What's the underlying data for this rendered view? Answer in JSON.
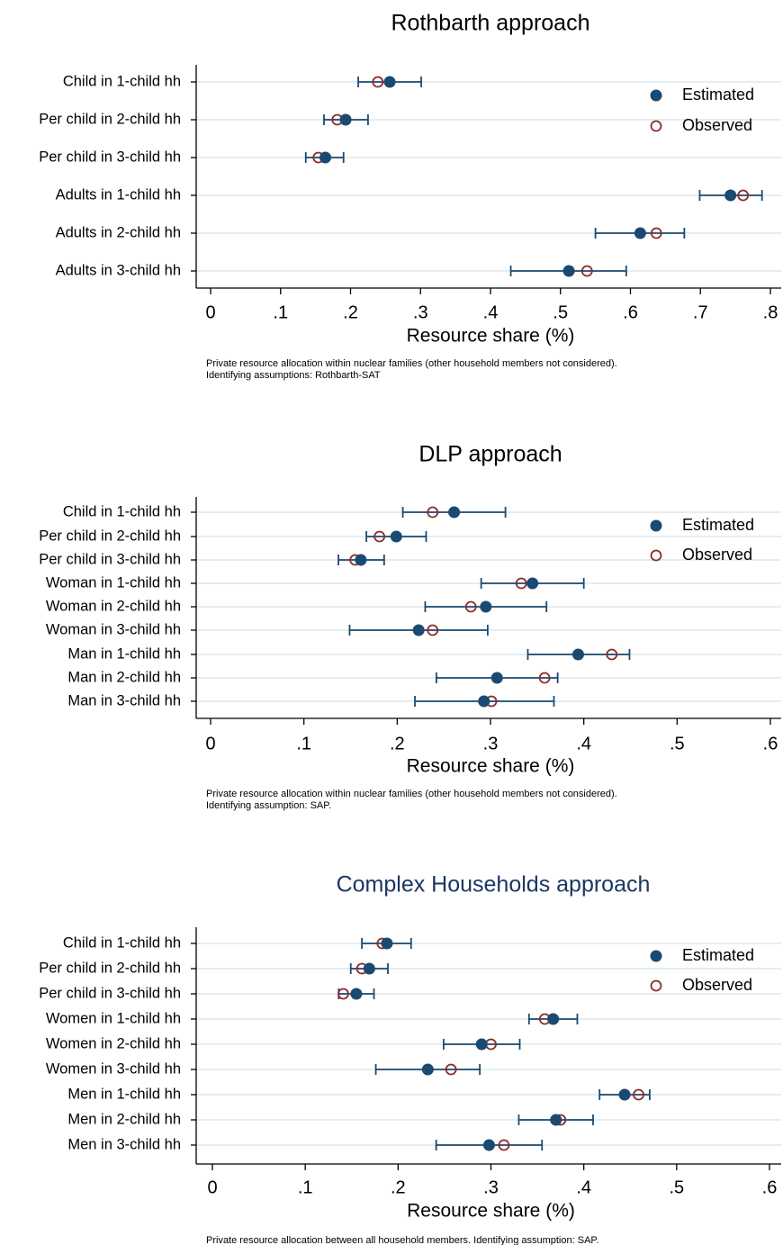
{
  "colors": {
    "estimated": "#1a4a72",
    "observed": "#8f2a28",
    "grid": "#e4eef1",
    "title_panel_3": "#1a3763",
    "axis": "#000000"
  },
  "chart_data": [
    {
      "type": "scatter",
      "title": "Rothbarth approach",
      "xlabel": "Resource share (%)",
      "xlim": [
        0,
        0.8
      ],
      "xticks": [
        0,
        0.1,
        0.2,
        0.3,
        0.4,
        0.5,
        0.6,
        0.7,
        0.8
      ],
      "xtick_labels": [
        "0",
        ".1",
        ".2",
        ".3",
        ".4",
        ".5",
        ".6",
        ".7",
        ".8"
      ],
      "categories": [
        "Child in 1-child hh",
        "Per child in 2-child hh",
        "Per child in 3-child hh",
        "Adults in 1-child hh",
        "Adults in 2-child hh",
        "Adults in 3-child hh"
      ],
      "series": [
        {
          "name": "Estimated",
          "values": [
            0.256,
            0.193,
            0.164,
            0.743,
            0.614,
            0.512
          ],
          "ci_low": [
            0.211,
            0.162,
            0.136,
            0.699,
            0.55,
            0.429
          ],
          "ci_high": [
            0.301,
            0.225,
            0.19,
            0.788,
            0.677,
            0.594
          ]
        },
        {
          "name": "Observed",
          "values": [
            0.239,
            0.181,
            0.154,
            0.761,
            0.637,
            0.538
          ]
        }
      ],
      "legend": "top-right",
      "grid": true,
      "note": [
        "Private resource allocation within nuclear families (other household members not considered).",
        "Identifying assumptions: Rothbarth-SAT"
      ]
    },
    {
      "type": "scatter",
      "title": "DLP approach",
      "xlabel": "Resource share (%)",
      "xlim": [
        0,
        0.6
      ],
      "xticks": [
        0,
        0.1,
        0.2,
        0.3,
        0.4,
        0.5,
        0.6
      ],
      "xtick_labels": [
        "0",
        ".1",
        ".2",
        ".3",
        ".4",
        ".5",
        ".6"
      ],
      "categories": [
        "Child in 1-child hh",
        "Per child in 2-child hh",
        "Per child in 3-child hh",
        "Woman in 1-child hh",
        "Woman in 2-child hh",
        "Woman in 3-child hh",
        "Man in 1-child hh",
        "Man in 2-child hh",
        "Man in 3-child hh"
      ],
      "series": [
        {
          "name": "Estimated",
          "values": [
            0.261,
            0.199,
            0.161,
            0.345,
            0.295,
            0.223,
            0.394,
            0.307,
            0.293
          ],
          "ci_low": [
            0.206,
            0.167,
            0.137,
            0.29,
            0.23,
            0.149,
            0.34,
            0.242,
            0.219
          ],
          "ci_high": [
            0.316,
            0.231,
            0.186,
            0.4,
            0.36,
            0.297,
            0.449,
            0.372,
            0.368
          ]
        },
        {
          "name": "Observed",
          "values": [
            0.238,
            0.181,
            0.155,
            0.333,
            0.279,
            0.238,
            0.43,
            0.358,
            0.301
          ]
        }
      ],
      "legend": "top-right",
      "grid": true,
      "note": [
        "Private resource allocation within nuclear families (other household members not considered).",
        "Identifying assumption: SAP."
      ]
    },
    {
      "type": "scatter",
      "title": "Complex Households approach",
      "xlabel": "Resource share (%)",
      "xlim": [
        0,
        0.6
      ],
      "xticks": [
        0,
        0.1,
        0.2,
        0.3,
        0.4,
        0.5,
        0.6
      ],
      "xtick_labels": [
        "0",
        ".1",
        ".2",
        ".3",
        ".4",
        ".5",
        ".6"
      ],
      "categories": [
        "Child in 1-child hh",
        "Per child in 2-child hh",
        "Per child in 3-child hh",
        "Women in 1-child hh",
        "Women in 2-child hh",
        "Women in 3-child hh",
        "Men in 1-child hh",
        "Men in 2-child hh",
        "Men in 3-child hh"
      ],
      "series": [
        {
          "name": "Estimated",
          "values": [
            0.188,
            0.169,
            0.155,
            0.367,
            0.29,
            0.232,
            0.444,
            0.37,
            0.298
          ],
          "ci_low": [
            0.161,
            0.149,
            0.136,
            0.341,
            0.249,
            0.176,
            0.417,
            0.33,
            0.241
          ],
          "ci_high": [
            0.214,
            0.189,
            0.174,
            0.393,
            0.331,
            0.288,
            0.471,
            0.41,
            0.355
          ]
        },
        {
          "name": "Observed",
          "values": [
            0.183,
            0.161,
            0.141,
            0.358,
            0.3,
            0.257,
            0.459,
            0.375,
            0.314
          ]
        }
      ],
      "legend": "top-right",
      "grid": true,
      "note": [
        "Private resource allocation between all household members. Identifying assumption: SAP."
      ]
    }
  ]
}
